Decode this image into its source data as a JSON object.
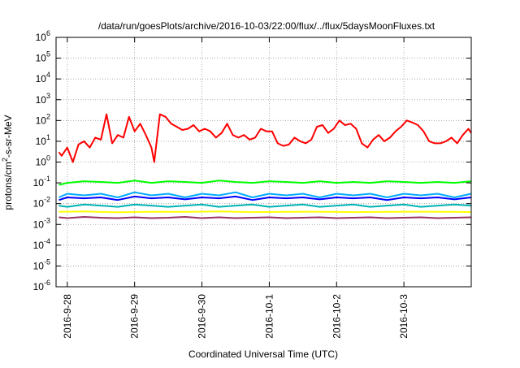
{
  "chart_data": {
    "type": "line",
    "title": "/data/run/goesPlots/archive/2016-10-03/22:00/flux/../flux/5daysMoonFluxes.txt",
    "xlabel": "Coordinated Universal Time (UTC)",
    "ylabel": "protons/cm²-s-sr-MeV",
    "ylabel_parts": {
      "pre": "protons/cm",
      "sup": "2",
      "post": "-s-sr-MeV"
    },
    "y_scale": "log",
    "ylim": [
      1e-06,
      1000000.0
    ],
    "xlim": [
      "2016-09-27T20:00",
      "2016-10-04T00:00"
    ],
    "grid": true,
    "legend": "none",
    "x_ticks": [
      {
        "label": "2016-9-28",
        "x": "2016-09-28T00:00"
      },
      {
        "label": "2016-9-29",
        "x": "2016-09-29T00:00"
      },
      {
        "label": "2016-9-30",
        "x": "2016-09-30T00:00"
      },
      {
        "label": "2016-10-1",
        "x": "2016-10-01T00:00"
      },
      {
        "label": "2016-10-2",
        "x": "2016-10-02T00:00"
      },
      {
        "label": "2016-10-3",
        "x": "2016-10-03T00:00"
      }
    ],
    "y_ticks": [
      {
        "base": "10",
        "exp": "-6",
        "value": 1e-06
      },
      {
        "base": "10",
        "exp": "-5",
        "value": 1e-05
      },
      {
        "base": "10",
        "exp": "-4",
        "value": 0.0001
      },
      {
        "base": "10",
        "exp": "-3",
        "value": 0.001
      },
      {
        "base": "10",
        "exp": "-2",
        "value": 0.01
      },
      {
        "base": "10",
        "exp": "-1",
        "value": 0.1
      },
      {
        "base": "10",
        "exp": "0",
        "value": 1
      },
      {
        "base": "10",
        "exp": "1",
        "value": 10
      },
      {
        "base": "10",
        "exp": "2",
        "value": 100
      },
      {
        "base": "10",
        "exp": "3",
        "value": 1000
      },
      {
        "base": "10",
        "exp": "4",
        "value": 10000
      },
      {
        "base": "10",
        "exp": "5",
        "value": 100000
      },
      {
        "base": "10",
        "exp": "6",
        "value": 1000000
      }
    ],
    "series": [
      {
        "color": "#ff0000",
        "x": [
          "2016-09-27T21:00",
          "2016-09-27T22:00",
          "2016-09-28T00:00",
          "2016-09-28T02:00",
          "2016-09-28T04:00",
          "2016-09-28T06:00",
          "2016-09-28T08:00",
          "2016-09-28T10:00",
          "2016-09-28T12:00",
          "2016-09-28T14:00",
          "2016-09-28T16:00",
          "2016-09-28T18:00",
          "2016-09-28T20:00",
          "2016-09-28T22:00",
          "2016-09-29T00:00",
          "2016-09-29T02:00",
          "2016-09-29T04:00",
          "2016-09-29T06:00",
          "2016-09-29T07:00",
          "2016-09-29T09:00",
          "2016-09-29T11:00",
          "2016-09-29T13:00",
          "2016-09-29T15:00",
          "2016-09-29T17:00",
          "2016-09-29T19:00",
          "2016-09-29T21:00",
          "2016-09-29T23:00",
          "2016-09-30T01:00",
          "2016-09-30T03:00",
          "2016-09-30T05:00",
          "2016-09-30T07:00",
          "2016-09-30T09:00",
          "2016-09-30T11:00",
          "2016-09-30T13:00",
          "2016-09-30T15:00",
          "2016-09-30T17:00",
          "2016-09-30T19:00",
          "2016-09-30T21:00",
          "2016-09-30T23:00",
          "2016-10-01T01:00",
          "2016-10-01T03:00",
          "2016-10-01T05:00",
          "2016-10-01T07:00",
          "2016-10-01T09:00",
          "2016-10-01T11:00",
          "2016-10-01T13:00",
          "2016-10-01T15:00",
          "2016-10-01T17:00",
          "2016-10-01T19:00",
          "2016-10-01T21:00",
          "2016-10-01T23:00",
          "2016-10-02T01:00",
          "2016-10-02T03:00",
          "2016-10-02T05:00",
          "2016-10-02T07:00",
          "2016-10-02T09:00",
          "2016-10-02T11:00",
          "2016-10-02T13:00",
          "2016-10-02T15:00",
          "2016-10-02T17:00",
          "2016-10-02T19:00",
          "2016-10-02T21:00",
          "2016-10-02T23:00",
          "2016-10-03T01:00",
          "2016-10-03T03:00",
          "2016-10-03T05:00",
          "2016-10-03T07:00",
          "2016-10-03T09:00",
          "2016-10-03T11:00",
          "2016-10-03T13:00",
          "2016-10-03T15:00",
          "2016-10-03T17:00",
          "2016-10-03T19:00",
          "2016-10-03T21:00",
          "2016-10-03T23:00",
          "2016-10-03T23:59"
        ],
        "values": [
          3,
          2,
          5,
          1,
          7,
          10,
          5,
          15,
          12,
          200,
          8,
          20,
          15,
          150,
          30,
          70,
          20,
          5,
          1,
          200,
          150,
          70,
          50,
          35,
          40,
          60,
          30,
          40,
          30,
          15,
          25,
          70,
          20,
          15,
          20,
          12,
          15,
          40,
          30,
          30,
          8,
          6,
          7,
          15,
          10,
          8,
          12,
          50,
          60,
          25,
          40,
          100,
          60,
          70,
          40,
          8,
          5,
          12,
          20,
          10,
          15,
          30,
          50,
          100,
          80,
          60,
          30,
          10,
          8,
          8,
          10,
          15,
          8,
          20,
          40,
          25
        ]
      },
      {
        "color": "#00ff00",
        "x": [
          "2016-09-27T21:00",
          "2016-09-28T00:00",
          "2016-09-28T06:00",
          "2016-09-28T12:00",
          "2016-09-28T18:00",
          "2016-09-29T00:00",
          "2016-09-29T06:00",
          "2016-09-29T12:00",
          "2016-09-29T18:00",
          "2016-09-30T00:00",
          "2016-09-30T06:00",
          "2016-09-30T12:00",
          "2016-09-30T18:00",
          "2016-10-01T00:00",
          "2016-10-01T06:00",
          "2016-10-01T12:00",
          "2016-10-01T18:00",
          "2016-10-02T00:00",
          "2016-10-02T06:00",
          "2016-10-02T12:00",
          "2016-10-02T18:00",
          "2016-10-03T00:00",
          "2016-10-03T06:00",
          "2016-10-03T12:00",
          "2016-10-03T18:00",
          "2016-10-03T23:59"
        ],
        "values": [
          0.08,
          0.1,
          0.12,
          0.11,
          0.1,
          0.13,
          0.1,
          0.12,
          0.11,
          0.1,
          0.13,
          0.11,
          0.1,
          0.12,
          0.11,
          0.1,
          0.12,
          0.1,
          0.11,
          0.1,
          0.12,
          0.11,
          0.1,
          0.11,
          0.1,
          0.12
        ]
      },
      {
        "color": "#00aaff",
        "x": [
          "2016-09-27T21:00",
          "2016-09-28T00:00",
          "2016-09-28T06:00",
          "2016-09-28T12:00",
          "2016-09-28T18:00",
          "2016-09-29T00:00",
          "2016-09-29T06:00",
          "2016-09-29T12:00",
          "2016-09-29T18:00",
          "2016-09-30T00:00",
          "2016-09-30T06:00",
          "2016-09-30T12:00",
          "2016-09-30T18:00",
          "2016-10-01T00:00",
          "2016-10-01T06:00",
          "2016-10-01T12:00",
          "2016-10-01T18:00",
          "2016-10-02T00:00",
          "2016-10-02T06:00",
          "2016-10-02T12:00",
          "2016-10-02T18:00",
          "2016-10-03T00:00",
          "2016-10-03T06:00",
          "2016-10-03T12:00",
          "2016-10-03T18:00",
          "2016-10-03T23:59"
        ],
        "values": [
          0.02,
          0.03,
          0.025,
          0.03,
          0.02,
          0.035,
          0.025,
          0.03,
          0.02,
          0.03,
          0.025,
          0.035,
          0.02,
          0.03,
          0.025,
          0.03,
          0.02,
          0.03,
          0.025,
          0.03,
          0.02,
          0.03,
          0.025,
          0.03,
          0.02,
          0.03
        ]
      },
      {
        "color": "#0000ff",
        "x": [
          "2016-09-27T21:00",
          "2016-09-28T00:00",
          "2016-09-28T06:00",
          "2016-09-28T12:00",
          "2016-09-28T18:00",
          "2016-09-29T00:00",
          "2016-09-29T06:00",
          "2016-09-29T12:00",
          "2016-09-29T18:00",
          "2016-09-30T00:00",
          "2016-09-30T06:00",
          "2016-09-30T12:00",
          "2016-09-30T18:00",
          "2016-10-01T00:00",
          "2016-10-01T06:00",
          "2016-10-01T12:00",
          "2016-10-01T18:00",
          "2016-10-02T00:00",
          "2016-10-02T06:00",
          "2016-10-02T12:00",
          "2016-10-02T18:00",
          "2016-10-03T00:00",
          "2016-10-03T06:00",
          "2016-10-03T12:00",
          "2016-10-03T18:00",
          "2016-10-03T23:59"
        ],
        "values": [
          0.015,
          0.02,
          0.018,
          0.02,
          0.015,
          0.022,
          0.018,
          0.02,
          0.016,
          0.02,
          0.018,
          0.022,
          0.015,
          0.02,
          0.018,
          0.02,
          0.016,
          0.02,
          0.018,
          0.02,
          0.015,
          0.02,
          0.018,
          0.02,
          0.016,
          0.02
        ]
      },
      {
        "color": "#00b3b3",
        "x": [
          "2016-09-27T21:00",
          "2016-09-28T00:00",
          "2016-09-28T06:00",
          "2016-09-28T12:00",
          "2016-09-28T18:00",
          "2016-09-29T00:00",
          "2016-09-29T06:00",
          "2016-09-29T12:00",
          "2016-09-29T18:00",
          "2016-09-30T00:00",
          "2016-09-30T06:00",
          "2016-09-30T12:00",
          "2016-09-30T18:00",
          "2016-10-01T00:00",
          "2016-10-01T06:00",
          "2016-10-01T12:00",
          "2016-10-01T18:00",
          "2016-10-02T00:00",
          "2016-10-02T06:00",
          "2016-10-02T12:00",
          "2016-10-02T18:00",
          "2016-10-03T00:00",
          "2016-10-03T06:00",
          "2016-10-03T12:00",
          "2016-10-03T18:00",
          "2016-10-03T23:59"
        ],
        "values": [
          0.008,
          0.007,
          0.009,
          0.008,
          0.007,
          0.009,
          0.008,
          0.007,
          0.008,
          0.009,
          0.007,
          0.008,
          0.009,
          0.007,
          0.008,
          0.009,
          0.007,
          0.008,
          0.009,
          0.007,
          0.008,
          0.009,
          0.007,
          0.008,
          0.009,
          0.008
        ]
      },
      {
        "color": "#ffff00",
        "x": [
          "2016-09-27T21:00",
          "2016-09-28T06:00",
          "2016-09-28T18:00",
          "2016-09-29T06:00",
          "2016-09-29T18:00",
          "2016-09-30T06:00",
          "2016-09-30T18:00",
          "2016-10-01T06:00",
          "2016-10-01T18:00",
          "2016-10-02T06:00",
          "2016-10-02T18:00",
          "2016-10-03T06:00",
          "2016-10-03T18:00",
          "2016-10-03T23:59"
        ],
        "values": [
          0.004,
          0.0042,
          0.0038,
          0.0041,
          0.004,
          0.0042,
          0.0039,
          0.004,
          0.0041,
          0.0039,
          0.004,
          0.0041,
          0.004,
          0.0039
        ]
      },
      {
        "color": "#993366",
        "x": [
          "2016-09-27T21:00",
          "2016-09-28T00:00",
          "2016-09-28T06:00",
          "2016-09-28T12:00",
          "2016-09-28T18:00",
          "2016-09-29T00:00",
          "2016-09-29T06:00",
          "2016-09-29T12:00",
          "2016-09-29T18:00",
          "2016-09-30T00:00",
          "2016-09-30T06:00",
          "2016-09-30T12:00",
          "2016-09-30T18:00",
          "2016-10-01T00:00",
          "2016-10-01T06:00",
          "2016-10-01T12:00",
          "2016-10-01T18:00",
          "2016-10-02T00:00",
          "2016-10-02T06:00",
          "2016-10-02T12:00",
          "2016-10-02T18:00",
          "2016-10-03T00:00",
          "2016-10-03T06:00",
          "2016-10-03T12:00",
          "2016-10-03T18:00",
          "2016-10-03T23:59"
        ],
        "values": [
          0.0022,
          0.002,
          0.0023,
          0.0021,
          0.002,
          0.0022,
          0.002,
          0.0021,
          0.0023,
          0.002,
          0.0022,
          0.002,
          0.0021,
          0.0022,
          0.002,
          0.0021,
          0.0022,
          0.002,
          0.0021,
          0.0022,
          0.002,
          0.0021,
          0.0022,
          0.002,
          0.0021,
          0.0022
        ]
      }
    ]
  }
}
